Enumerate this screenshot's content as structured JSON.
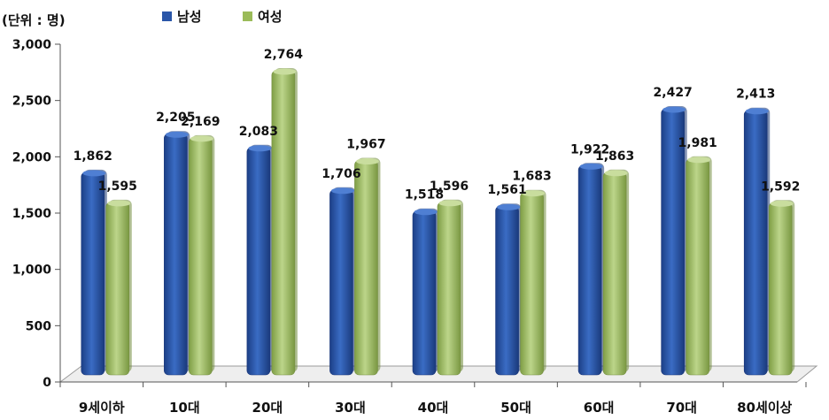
{
  "unit_label": "(단위 : 명)",
  "chart_data": {
    "type": "bar",
    "title": "",
    "xlabel": "",
    "ylabel": "",
    "ylim": [
      0,
      3000
    ],
    "yticks": [
      0,
      500,
      1000,
      1500,
      2000,
      2500,
      3000
    ],
    "ytick_labels": [
      "0",
      "500",
      "1,000",
      "1,500",
      "2,000",
      "2,500",
      "3,000"
    ],
    "grid": false,
    "legend_position": "top-left",
    "categories": [
      "9세이하",
      "10대",
      "20대",
      "30대",
      "40대",
      "50대",
      "60대",
      "70대",
      "80세이상"
    ],
    "series": [
      {
        "name": "남성",
        "color": "#2a56a8",
        "values": [
          1862,
          2205,
          2083,
          1706,
          1518,
          1561,
          1922,
          2427,
          2413
        ],
        "labels": [
          "1,862",
          "2,205",
          "2,083",
          "1,706",
          "1,518",
          "1,561",
          "1,922",
          "2,427",
          "2,413"
        ]
      },
      {
        "name": "여성",
        "color": "#9bbb59",
        "values": [
          1595,
          2169,
          2764,
          1967,
          1596,
          1683,
          1863,
          1981,
          1592
        ],
        "labels": [
          "1,595",
          "2,169",
          "2,764",
          "1,967",
          "1,596",
          "1,683",
          "1,863",
          "1,981",
          "1,592"
        ]
      }
    ]
  }
}
